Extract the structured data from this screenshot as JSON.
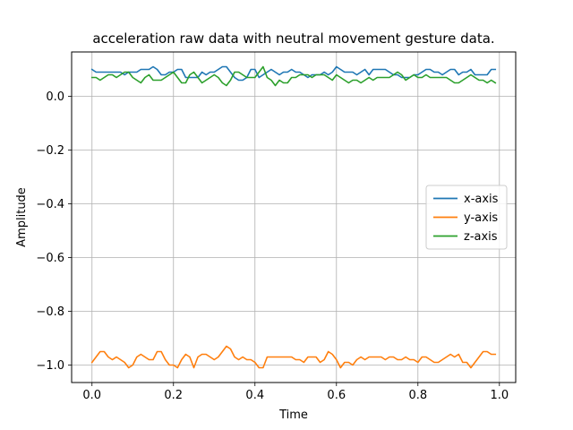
{
  "chart_data": {
    "type": "line",
    "title": "acceleration raw data with neutral movement gesture data.",
    "xlabel": "Time",
    "ylabel": "Amplitude",
    "xlim": [
      -0.05,
      1.04
    ],
    "ylim": [
      -1.065,
      0.165
    ],
    "xticks": [
      0.0,
      0.2,
      0.4,
      0.6,
      0.8,
      1.0
    ],
    "xtick_labels": [
      "0.0",
      "0.2",
      "0.4",
      "0.6",
      "0.8",
      "1.0"
    ],
    "yticks": [
      0.0,
      -0.2,
      -0.4,
      -0.6,
      -0.8,
      -1.0
    ],
    "ytick_labels": [
      "0.0",
      "−0.2",
      "−0.4",
      "−0.6",
      "−0.8",
      "−1.0"
    ],
    "grid": true,
    "legend_position": "center-right",
    "x": [
      0.0,
      0.01,
      0.02,
      0.03,
      0.04,
      0.05,
      0.06,
      0.07,
      0.08,
      0.09,
      0.1,
      0.11,
      0.12,
      0.13,
      0.14,
      0.15,
      0.16,
      0.17,
      0.18,
      0.19,
      0.2,
      0.21,
      0.22,
      0.23,
      0.24,
      0.25,
      0.26,
      0.27,
      0.28,
      0.29,
      0.3,
      0.31,
      0.32,
      0.33,
      0.34,
      0.35,
      0.36,
      0.37,
      0.38,
      0.39,
      0.4,
      0.41,
      0.42,
      0.43,
      0.44,
      0.45,
      0.46,
      0.47,
      0.48,
      0.49,
      0.5,
      0.51,
      0.52,
      0.53,
      0.54,
      0.55,
      0.56,
      0.57,
      0.58,
      0.59,
      0.6,
      0.61,
      0.62,
      0.63,
      0.64,
      0.65,
      0.66,
      0.67,
      0.68,
      0.69,
      0.7,
      0.71,
      0.72,
      0.73,
      0.74,
      0.75,
      0.76,
      0.77,
      0.78,
      0.79,
      0.8,
      0.81,
      0.82,
      0.83,
      0.84,
      0.85,
      0.86,
      0.87,
      0.88,
      0.89,
      0.9,
      0.91,
      0.92,
      0.93,
      0.94,
      0.95,
      0.96,
      0.97,
      0.98,
      0.99
    ],
    "series": [
      {
        "name": "x-axis",
        "color": "#1f77b4",
        "values": [
          0.1,
          0.09,
          0.09,
          0.09,
          0.09,
          0.09,
          0.09,
          0.09,
          0.08,
          0.09,
          0.09,
          0.09,
          0.1,
          0.1,
          0.1,
          0.11,
          0.1,
          0.08,
          0.08,
          0.09,
          0.09,
          0.1,
          0.1,
          0.07,
          0.07,
          0.07,
          0.07,
          0.09,
          0.08,
          0.09,
          0.09,
          0.1,
          0.11,
          0.11,
          0.09,
          0.07,
          0.06,
          0.06,
          0.07,
          0.1,
          0.1,
          0.07,
          0.08,
          0.09,
          0.1,
          0.09,
          0.08,
          0.09,
          0.09,
          0.1,
          0.09,
          0.09,
          0.08,
          0.07,
          0.08,
          0.08,
          0.08,
          0.09,
          0.08,
          0.09,
          0.11,
          0.1,
          0.09,
          0.09,
          0.09,
          0.08,
          0.09,
          0.1,
          0.08,
          0.1,
          0.1,
          0.1,
          0.1,
          0.09,
          0.08,
          0.08,
          0.07,
          0.07,
          0.07,
          0.08,
          0.08,
          0.09,
          0.1,
          0.1,
          0.09,
          0.09,
          0.08,
          0.09,
          0.1,
          0.1,
          0.08,
          0.09,
          0.09,
          0.1,
          0.08,
          0.08,
          0.08,
          0.08,
          0.1,
          0.1
        ]
      },
      {
        "name": "y-axis",
        "color": "#ff7f0e",
        "values": [
          -0.99,
          -0.97,
          -0.95,
          -0.95,
          -0.97,
          -0.98,
          -0.97,
          -0.98,
          -0.99,
          -1.01,
          -1.0,
          -0.97,
          -0.96,
          -0.97,
          -0.98,
          -0.98,
          -0.95,
          -0.95,
          -0.98,
          -1.0,
          -1.0,
          -1.01,
          -0.98,
          -0.96,
          -0.97,
          -1.01,
          -0.97,
          -0.96,
          -0.96,
          -0.97,
          -0.98,
          -0.97,
          -0.95,
          -0.93,
          -0.94,
          -0.97,
          -0.98,
          -0.97,
          -0.98,
          -0.98,
          -0.99,
          -1.01,
          -1.01,
          -0.97,
          -0.97,
          -0.97,
          -0.97,
          -0.97,
          -0.97,
          -0.97,
          -0.98,
          -0.98,
          -0.99,
          -0.97,
          -0.97,
          -0.97,
          -0.99,
          -0.98,
          -0.95,
          -0.96,
          -0.98,
          -1.01,
          -0.99,
          -0.99,
          -1.0,
          -0.98,
          -0.97,
          -0.98,
          -0.97,
          -0.97,
          -0.97,
          -0.97,
          -0.98,
          -0.97,
          -0.97,
          -0.98,
          -0.98,
          -0.97,
          -0.98,
          -0.98,
          -0.99,
          -0.97,
          -0.97,
          -0.98,
          -0.99,
          -0.99,
          -0.98,
          -0.97,
          -0.96,
          -0.97,
          -0.96,
          -0.99,
          -0.99,
          -1.01,
          -0.99,
          -0.97,
          -0.95,
          -0.95,
          -0.96,
          -0.96
        ]
      },
      {
        "name": "z-axis",
        "color": "#2ca02c",
        "values": [
          0.07,
          0.07,
          0.06,
          0.07,
          0.08,
          0.08,
          0.07,
          0.08,
          0.09,
          0.09,
          0.07,
          0.06,
          0.05,
          0.07,
          0.08,
          0.06,
          0.06,
          0.06,
          0.07,
          0.08,
          0.09,
          0.07,
          0.05,
          0.05,
          0.08,
          0.09,
          0.07,
          0.05,
          0.06,
          0.07,
          0.08,
          0.07,
          0.05,
          0.04,
          0.06,
          0.09,
          0.09,
          0.08,
          0.07,
          0.07,
          0.07,
          0.09,
          0.11,
          0.07,
          0.06,
          0.04,
          0.06,
          0.05,
          0.05,
          0.07,
          0.07,
          0.08,
          0.08,
          0.08,
          0.07,
          0.08,
          0.08,
          0.08,
          0.07,
          0.06,
          0.08,
          0.07,
          0.06,
          0.05,
          0.06,
          0.06,
          0.05,
          0.06,
          0.07,
          0.06,
          0.07,
          0.07,
          0.07,
          0.07,
          0.08,
          0.09,
          0.08,
          0.06,
          0.07,
          0.08,
          0.07,
          0.07,
          0.08,
          0.07,
          0.07,
          0.07,
          0.07,
          0.07,
          0.06,
          0.05,
          0.05,
          0.06,
          0.07,
          0.08,
          0.07,
          0.06,
          0.06,
          0.05,
          0.06,
          0.05
        ]
      }
    ]
  }
}
